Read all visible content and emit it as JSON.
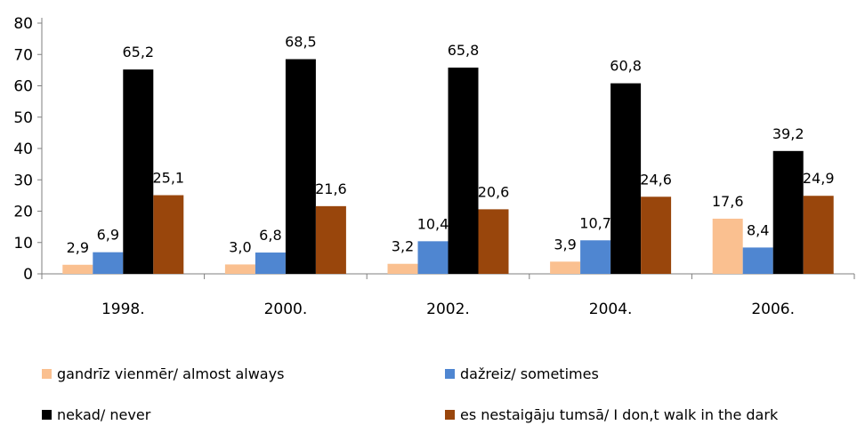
{
  "chart_data": {
    "type": "bar",
    "categories": [
      "1998.",
      "2000.",
      "2002.",
      "2004.",
      "2006."
    ],
    "ylim": [
      0,
      80
    ],
    "yticks": [
      0,
      10,
      20,
      30,
      40,
      50,
      60,
      70,
      80
    ],
    "series": [
      {
        "name": "gandrīz vienmēr/ almost always",
        "color": "#fac090",
        "values": [
          2.9,
          3.0,
          3.2,
          3.9,
          17.6
        ],
        "labels": [
          "2,9",
          "3,0",
          "3,2",
          "3,9",
          "17,6"
        ]
      },
      {
        "name": "dažreiz/ sometimes",
        "color": "#4f86d1",
        "values": [
          6.9,
          6.8,
          10.4,
          10.7,
          8.4
        ],
        "labels": [
          "6,9",
          "6,8",
          "10,4",
          "10,7",
          "8,4"
        ]
      },
      {
        "name": "nekad/ never",
        "color": "#000000",
        "values": [
          65.2,
          68.5,
          65.8,
          60.8,
          39.2
        ],
        "labels": [
          "65,2",
          "68,5",
          "65,8",
          "60,8",
          "39,2"
        ]
      },
      {
        "name": "es nestaigāju tumsā/ I don‚t walk in the dark",
        "color": "#99460c",
        "values": [
          25.1,
          21.6,
          20.6,
          24.6,
          24.9
        ],
        "labels": [
          "25,1",
          "21,6",
          "20,6",
          "24,6",
          "24,9"
        ]
      }
    ],
    "grid": false,
    "legend_position": "bottom"
  }
}
